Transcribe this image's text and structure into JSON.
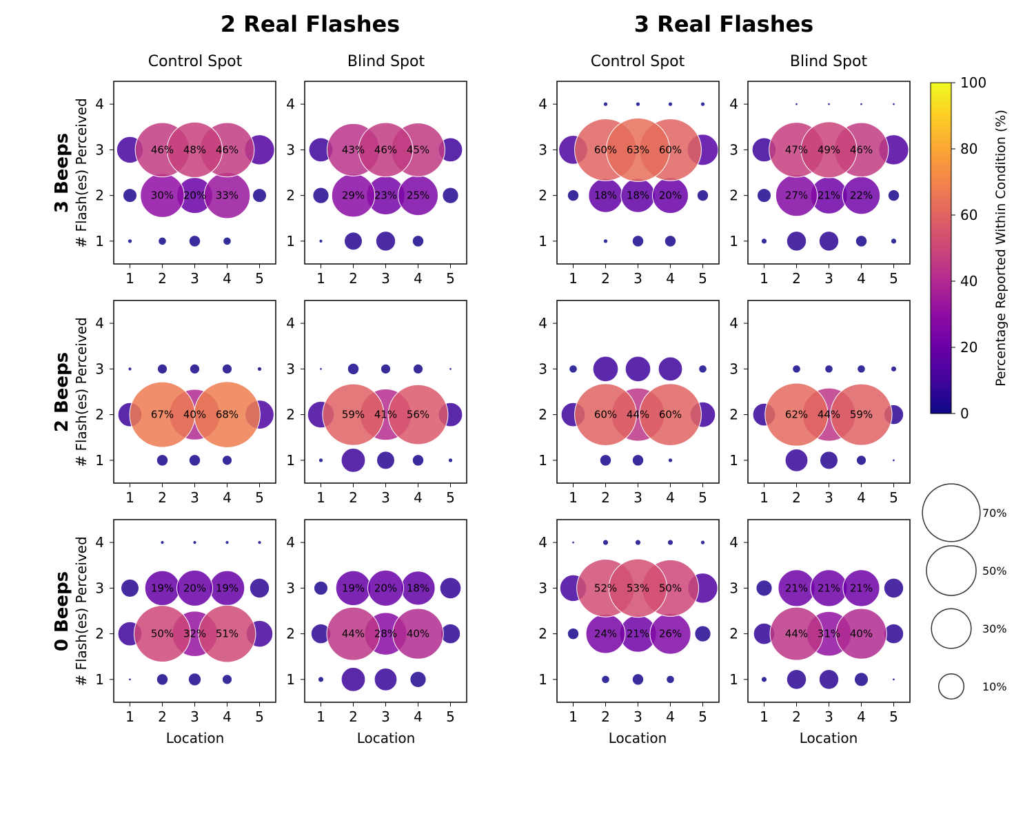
{
  "chart_data": {
    "type": "scatter",
    "group_titles": [
      "2 Real Flashes",
      "3 Real Flashes"
    ],
    "column_titles": [
      "Control Spot",
      "Blind Spot"
    ],
    "row_titles": [
      "3 Beeps",
      "2 Beeps",
      "0 Beeps"
    ],
    "ylabel": "# Flash(es) Perceived",
    "xlabel": "Location",
    "x_ticks": [
      "1",
      "2",
      "3",
      "4",
      "5"
    ],
    "y_ticks": [
      "1",
      "2",
      "3",
      "4"
    ],
    "xlim": [
      0.5,
      5.5
    ],
    "ylim": [
      0.5,
      4.5
    ],
    "colorbar": {
      "label": "Percentage Reported Within Condition (%)",
      "range": [
        0,
        100
      ],
      "ticks": [
        "0",
        "20",
        "40",
        "60",
        "80",
        "100"
      ],
      "colormap": "plasma"
    },
    "size_legend": [
      {
        "value": 70,
        "label": "70%"
      },
      {
        "value": 50,
        "label": "50%"
      },
      {
        "value": 30,
        "label": "30%"
      },
      {
        "value": 10,
        "label": "10%"
      }
    ],
    "panels": [
      {
        "group": "2 Real Flashes",
        "column": "Control Spot",
        "row": "3 Beeps",
        "values": {
          "1": [
            0.3,
            1,
            2,
            1,
            0
          ],
          "2": [
            3,
            30,
            20,
            33,
            3
          ],
          "3": [
            11,
            46,
            48,
            46,
            14
          ],
          "4": [
            0,
            0,
            0,
            0,
            0
          ]
        }
      },
      {
        "group": "2 Real Flashes",
        "column": "Blind Spot",
        "row": "3 Beeps",
        "values": {
          "1": [
            0.2,
            5,
            6,
            2,
            0
          ],
          "2": [
            4,
            29,
            23,
            25,
            4
          ],
          "3": [
            9,
            43,
            46,
            45,
            9
          ],
          "4": [
            0,
            0,
            0,
            0,
            0
          ]
        }
      },
      {
        "group": "3 Real Flashes",
        "column": "Control Spot",
        "row": "3 Beeps",
        "values": {
          "1": [
            0,
            0.3,
            2,
            2,
            0
          ],
          "2": [
            2,
            18,
            18,
            20,
            2
          ],
          "3": [
            13,
            60,
            63,
            60,
            15
          ],
          "4": [
            0,
            0.3,
            0.3,
            0.3,
            0.3
          ]
        }
      },
      {
        "group": "3 Real Flashes",
        "column": "Blind Spot",
        "row": "3 Beeps",
        "values": {
          "1": [
            0.5,
            6,
            6,
            2,
            0.5
          ],
          "2": [
            3,
            27,
            21,
            22,
            2
          ],
          "3": [
            9,
            47,
            49,
            46,
            14
          ],
          "4": [
            0,
            0.1,
            0.1,
            0.1,
            0.1
          ]
        }
      },
      {
        "group": "2 Real Flashes",
        "column": "Control Spot",
        "row": "2 Beeps",
        "values": {
          "1": [
            0,
            2,
            2,
            1.5,
            0
          ],
          "2": [
            9,
            67,
            40,
            68,
            13
          ],
          "3": [
            0.2,
            1.5,
            1.5,
            1.5,
            0.3
          ],
          "4": [
            0,
            0,
            0,
            0,
            0
          ]
        }
      },
      {
        "group": "2 Real Flashes",
        "column": "Blind Spot",
        "row": "2 Beeps",
        "values": {
          "1": [
            0.3,
            9,
            5,
            2,
            0.3
          ],
          "2": [
            11,
            59,
            41,
            56,
            9
          ],
          "3": [
            0.1,
            2,
            1.5,
            1.5,
            0.1
          ],
          "4": [
            0,
            0,
            0,
            0,
            0
          ]
        }
      },
      {
        "group": "3 Real Flashes",
        "column": "Control Spot",
        "row": "2 Beeps",
        "values": {
          "1": [
            0,
            2,
            2,
            0.3,
            0
          ],
          "2": [
            9,
            60,
            44,
            60,
            10
          ],
          "3": [
            1,
            10,
            10,
            9,
            1
          ],
          "4": [
            0,
            0,
            0,
            0,
            0
          ]
        }
      },
      {
        "group": "3 Real Flashes",
        "column": "Blind Spot",
        "row": "2 Beeps",
        "values": {
          "1": [
            0,
            8,
            5,
            1.5,
            0.1
          ],
          "2": [
            8,
            62,
            44,
            59,
            6
          ],
          "3": [
            0,
            1,
            1,
            1,
            0.5
          ],
          "4": [
            0,
            0,
            0,
            0,
            0
          ]
        }
      },
      {
        "group": "2 Real Flashes",
        "column": "Control Spot",
        "row": "0 Beeps",
        "values": {
          "1": [
            0.1,
            2,
            2.5,
            1.5,
            0
          ],
          "2": [
            9,
            50,
            32,
            51,
            11
          ],
          "3": [
            5,
            19,
            20,
            19,
            6
          ],
          "4": [
            0,
            0.2,
            0.2,
            0.2,
            0.2
          ]
        }
      },
      {
        "group": "2 Real Flashes",
        "column": "Blind Spot",
        "row": "0 Beeps",
        "values": {
          "1": [
            0.5,
            9,
            8,
            4,
            0
          ],
          "2": [
            6,
            44,
            28,
            40,
            6
          ],
          "3": [
            3,
            19,
            20,
            18,
            7
          ],
          "4": [
            0,
            0,
            0,
            0,
            0
          ]
        }
      },
      {
        "group": "3 Real Flashes",
        "column": "Control Spot",
        "row": "0 Beeps",
        "values": {
          "1": [
            0,
            1,
            2,
            1,
            0
          ],
          "2": [
            2,
            24,
            21,
            26,
            4
          ],
          "3": [
            11,
            52,
            53,
            50,
            14
          ],
          "4": [
            0.1,
            0.5,
            0.5,
            0.5,
            0.3
          ]
        }
      },
      {
        "group": "3 Real Flashes",
        "column": "Blind Spot",
        "row": "0 Beeps",
        "values": {
          "1": [
            0.5,
            6,
            6,
            3,
            0.1
          ],
          "2": [
            7,
            44,
            31,
            40,
            6
          ],
          "3": [
            4,
            21,
            21,
            21,
            6
          ],
          "4": [
            0,
            0,
            0,
            0,
            0
          ]
        }
      }
    ]
  }
}
